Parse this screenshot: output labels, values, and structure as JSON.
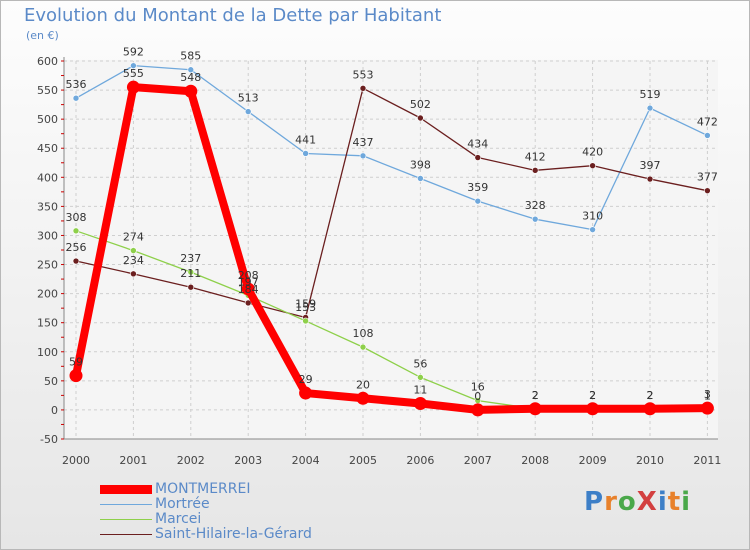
{
  "title": "Evolution du Montant de la Dette par Habitant",
  "subtitle": "(en €)",
  "logo_text": "ProXiti",
  "chart_data": {
    "type": "line",
    "title": "Evolution du Montant de la Dette par Habitant",
    "ylabel": "(en €)",
    "xlabel": "",
    "ylim": [
      -50,
      600
    ],
    "yticks": [
      -50,
      0,
      50,
      100,
      150,
      200,
      250,
      300,
      350,
      400,
      450,
      500,
      550,
      600
    ],
    "x": [
      "2000",
      "2001",
      "2002",
      "2003",
      "2004",
      "2005",
      "2006",
      "2007",
      "2008",
      "2009",
      "2010",
      "2011"
    ],
    "grid": true,
    "legend_position": "bottom-left",
    "series": [
      {
        "name": "MONTMERREI",
        "color": "#ff0000",
        "values": [
          59,
          555,
          548,
          208,
          29,
          20,
          11,
          0,
          2,
          2,
          2,
          3
        ]
      },
      {
        "name": "Mortrée",
        "color": "#6fa8dc",
        "values": [
          536,
          592,
          585,
          513,
          441,
          437,
          398,
          359,
          328,
          310,
          519,
          472
        ]
      },
      {
        "name": "Marcei",
        "color": "#8ed04a",
        "values": [
          308,
          274,
          237,
          197,
          153,
          108,
          56,
          16,
          2,
          2,
          2,
          1
        ]
      },
      {
        "name": "Saint-Hilaire-la-Gérard",
        "color": "#6b1f1f",
        "values": [
          256,
          234,
          211,
          184,
          159,
          553,
          502,
          434,
          412,
          420,
          397,
          377
        ]
      }
    ]
  }
}
